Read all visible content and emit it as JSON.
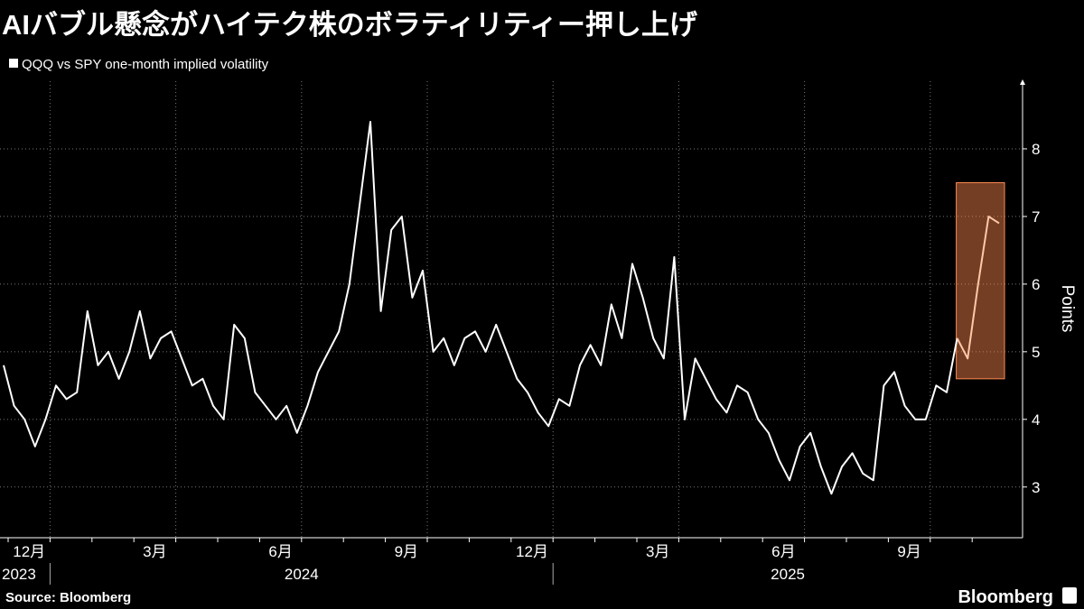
{
  "chart_data": {
    "type": "line",
    "title": "AIバブル懸念がハイテク株のボラティリティー押し上げ",
    "y_label": "Points",
    "source": "Source: Bloomberg",
    "brand": "Bloomberg",
    "categories": [
      "12月",
      null,
      null,
      null,
      null,
      null,
      null,
      null,
      null,
      null,
      null,
      null,
      "3月",
      null,
      null,
      null,
      null,
      null,
      null,
      null,
      null,
      null,
      null,
      null,
      "6月",
      null,
      null,
      null,
      null,
      null,
      null,
      null,
      null,
      null,
      null,
      null,
      "9月",
      null,
      null,
      null,
      null,
      null,
      null,
      null,
      null,
      null,
      null,
      null,
      "12月",
      null,
      null,
      null,
      null,
      null,
      null,
      null,
      null,
      null,
      null,
      null,
      "3月",
      null,
      null,
      null,
      null,
      null,
      null,
      null,
      null,
      null,
      null,
      null,
      "6月",
      null,
      null,
      null,
      null,
      null,
      null,
      null,
      null,
      null,
      null,
      null,
      "9月",
      null,
      null,
      null,
      null,
      null,
      null,
      null,
      null,
      null,
      null,
      null
    ],
    "years": [
      "2023",
      null,
      null,
      null,
      "2024",
      null,
      null,
      null,
      null,
      null,
      null,
      null,
      null,
      null,
      null,
      null,
      null,
      null,
      null,
      null,
      null,
      null,
      null,
      null,
      null,
      null,
      null,
      null,
      null,
      null,
      null,
      null,
      null,
      null,
      null,
      null,
      null,
      null,
      null,
      null,
      null,
      null,
      null,
      null,
      null,
      null,
      null,
      null,
      null,
      null,
      null,
      null,
      "2025",
      null,
      null,
      null,
      null,
      null,
      null,
      null,
      null,
      null,
      null,
      null,
      null,
      null,
      null,
      null,
      null,
      null,
      null,
      null,
      null,
      null,
      null,
      null,
      null,
      null,
      null,
      null,
      null,
      null,
      null,
      null,
      null,
      null,
      null,
      null,
      null,
      null,
      null,
      null,
      null,
      null,
      null,
      null
    ],
    "series": [
      {
        "name": "QQQ vs SPY one-month implied volatility",
        "color": "#ffffff",
        "values": [
          4.8,
          4.2,
          4.0,
          3.6,
          4.0,
          4.5,
          4.3,
          4.4,
          5.6,
          4.8,
          5.0,
          4.6,
          5.0,
          5.6,
          4.9,
          5.2,
          5.3,
          4.9,
          4.5,
          4.6,
          4.2,
          4.0,
          5.4,
          5.2,
          4.4,
          4.2,
          4.0,
          4.2,
          3.8,
          4.2,
          4.7,
          5.0,
          5.3,
          6.0,
          7.2,
          8.4,
          5.6,
          6.8,
          7.0,
          5.8,
          6.2,
          5.0,
          5.2,
          4.8,
          5.2,
          5.3,
          5.0,
          5.4,
          5.0,
          4.6,
          4.4,
          4.1,
          3.9,
          4.3,
          4.2,
          4.8,
          5.1,
          4.8,
          5.7,
          5.2,
          6.3,
          5.8,
          5.2,
          4.9,
          6.4,
          4.0,
          4.9,
          4.6,
          4.3,
          4.1,
          4.5,
          4.4,
          4.0,
          3.8,
          3.4,
          3.1,
          3.6,
          3.8,
          3.3,
          2.9,
          3.3,
          3.5,
          3.2,
          3.1,
          4.5,
          4.7,
          4.2,
          4.0,
          4.0,
          4.5,
          4.4,
          5.2,
          4.9,
          6.0,
          7.0,
          6.9
        ]
      }
    ],
    "highlight_color": "#ff8a50",
    "ylim": [
      2.25,
      9
    ],
    "yticks": [
      3,
      4,
      5,
      6,
      7,
      8
    ],
    "grid": true
  }
}
